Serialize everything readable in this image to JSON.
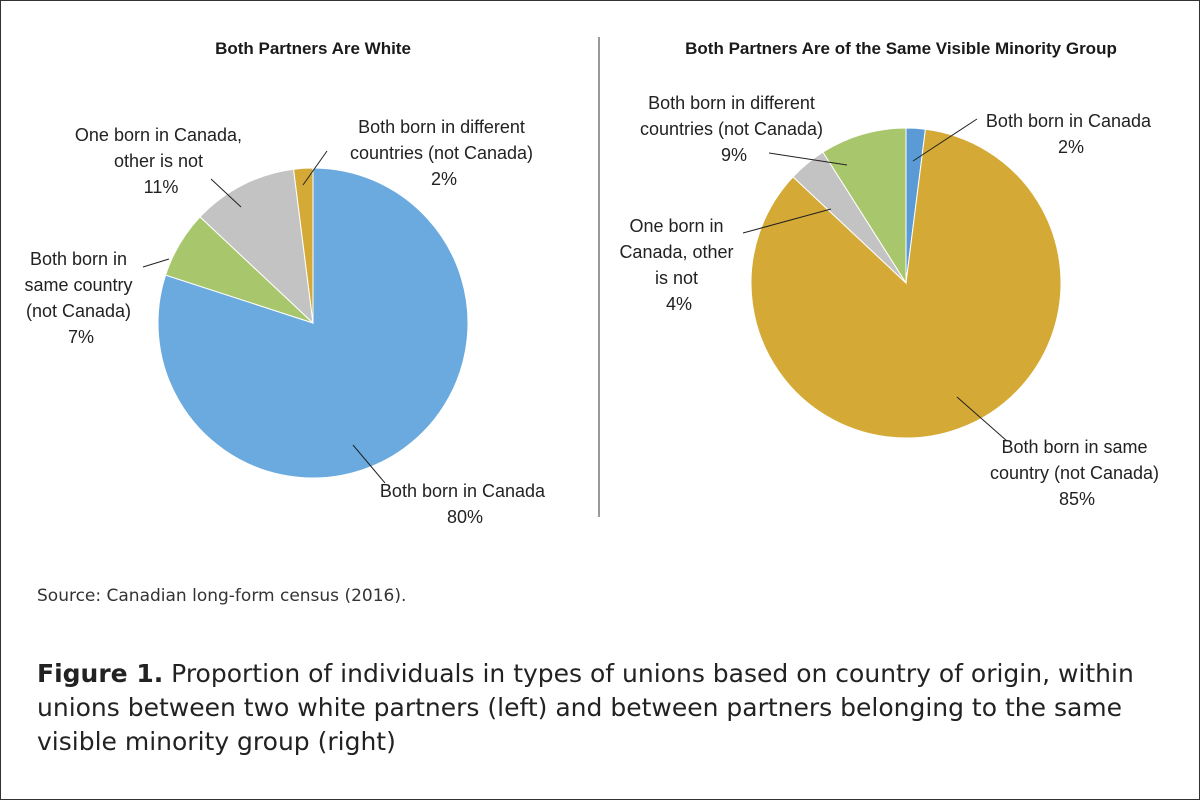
{
  "chart_data": [
    {
      "type": "pie",
      "title": "Both Partners Are White",
      "slices": [
        {
          "label": "Both born in Canada",
          "value": 80,
          "pct_label": "80%",
          "color": "#6aaade"
        },
        {
          "label": "Both born in same country (not Canada)",
          "value": 7,
          "pct_label": "7%",
          "color": "#a8c66c"
        },
        {
          "label": "One born in Canada, other is not",
          "value": 11,
          "pct_label": "11%",
          "color": "#c3c3c3"
        },
        {
          "label": "Both born in different countries (not Canada)",
          "value": 2,
          "pct_label": "2%",
          "color": "#d4a935"
        }
      ]
    },
    {
      "type": "pie",
      "title": "Both Partners Are of the Same Visible Minority Group",
      "slices": [
        {
          "label": "Both born in Canada",
          "value": 2,
          "pct_label": "2%",
          "color": "#5b9bd5"
        },
        {
          "label": "Both born in same country (not Canada)",
          "value": 85,
          "pct_label": "85%",
          "color": "#d4a935"
        },
        {
          "label": "One born in Canada, other is not",
          "value": 4,
          "pct_label": "4%",
          "color": "#c3c3c3"
        },
        {
          "label": "Both born in different countries (not Canada)",
          "value": 9,
          "pct_label": "9%",
          "color": "#a8c66c"
        }
      ]
    }
  ],
  "labels": {
    "left": {
      "canada": [
        "Both born in Canada",
        "80%"
      ],
      "same": [
        "Both born in",
        "same country",
        "(not Canada)",
        "7%"
      ],
      "one": [
        "One born in Canada,",
        "other is not",
        "11%"
      ],
      "diff": [
        "Both born in different",
        "countries (not Canada)",
        "2%"
      ]
    },
    "right": {
      "canada": [
        "Both born in Canada",
        "2%"
      ],
      "same": [
        "Both born in same",
        "country (not Canada)",
        "85%"
      ],
      "one": [
        "One born in",
        "Canada, other",
        "is not",
        "4%"
      ],
      "diff": [
        "Both born in different",
        "countries (not Canada)",
        "9%"
      ]
    }
  },
  "source": "Source: Canadian long-form census (2016).",
  "caption": {
    "bold": "Figure 1.",
    "text": " Proportion of individuals in types of unions based on country of origin, within unions between two white partners (left) and between partners belonging to the same visible minority group (right)"
  }
}
